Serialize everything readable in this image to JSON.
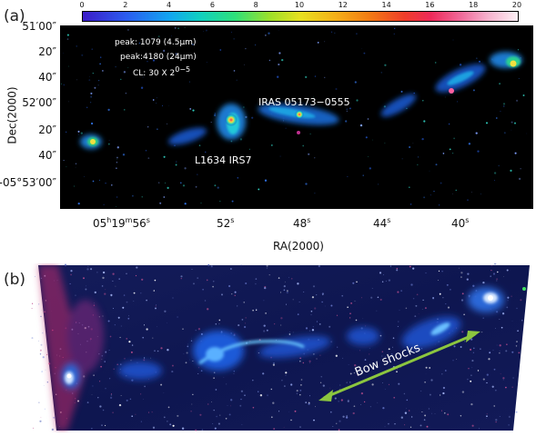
{
  "panel_a": {
    "label": "(a)",
    "colorbar": {
      "ticks": [
        "0",
        "2",
        "4",
        "6",
        "8",
        "10",
        "12",
        "14",
        "16",
        "18",
        "20"
      ]
    },
    "y_axis": {
      "title": "Dec(2000)",
      "ticks": [
        {
          "main": "51",
          "unit": "′",
          "sec": "00″",
          "prefix": ""
        },
        {
          "main": "20″"
        },
        {
          "main": "40″"
        },
        {
          "main": "52′",
          "unit": "",
          "sec": "00″",
          "prefix": ""
        },
        {
          "main": "20″"
        },
        {
          "main": "40″"
        },
        {
          "main": "-05°53′00″"
        }
      ]
    },
    "x_axis": {
      "title": "RA(2000)",
      "ticks": [
        {
          "h": "05",
          "hu": "h",
          "m": "19",
          "mu": "m",
          "s": "56",
          "su": "s"
        },
        {
          "s": "52",
          "su": "s"
        },
        {
          "s": "48",
          "su": "s"
        },
        {
          "s": "44",
          "su": "s"
        },
        {
          "s": "40",
          "su": "s"
        }
      ]
    },
    "legend": {
      "line1": "peak: 1079 (4.5μm)",
      "line2": "peak:4180 (24μm)",
      "line3_prefix": "CL: 30 X 2",
      "line3_sup": "0−5"
    },
    "sources": {
      "iras": "IRAS 05173−0555",
      "irs7": "L1634 IRS7"
    }
  },
  "panel_b": {
    "label": "(b)",
    "annotation": "Bow shocks",
    "arrow_color": "#8cc63f"
  }
}
